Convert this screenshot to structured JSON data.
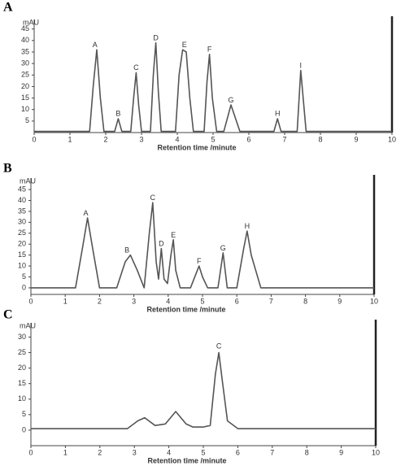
{
  "chart_data": [
    {
      "type": "line",
      "title": "A",
      "y_label": "mAU",
      "x_label": "Retention  time /minute",
      "xlim": [
        0,
        10
      ],
      "xticks": [
        0,
        1,
        2,
        3,
        4,
        5,
        6,
        7,
        8,
        9,
        10
      ],
      "ylim": [
        0,
        47
      ],
      "yticks": [
        5,
        10,
        15,
        20,
        25,
        30,
        35,
        40,
        45
      ],
      "series": [
        {
          "color": "#555555",
          "x": [
            0,
            1.55,
            1.65,
            1.75,
            1.85,
            1.95,
            2.25,
            2.35,
            2.45,
            2.7,
            2.78,
            2.85,
            2.92,
            3.0,
            3.25,
            3.33,
            3.4,
            3.47,
            3.55,
            3.95,
            4.05,
            4.15,
            4.25,
            4.35,
            4.45,
            4.75,
            4.83,
            4.9,
            4.98,
            5.1,
            5.3,
            5.5,
            5.75,
            6.7,
            6.8,
            6.9,
            7.35,
            7.45,
            7.6,
            10
          ],
          "values": [
            0.5,
            0.5,
            20,
            36,
            15,
            0.5,
            0.5,
            6,
            0.5,
            0.5,
            15,
            26,
            12,
            0.5,
            0.5,
            25,
            39,
            18,
            0.5,
            0.5,
            25,
            36,
            35,
            15,
            0.5,
            0.5,
            22,
            34,
            15,
            0.5,
            0.5,
            12,
            0.5,
            0.5,
            6,
            0.5,
            0.5,
            27,
            0.5,
            0.5
          ]
        }
      ],
      "annotations": [
        {
          "text": "A",
          "x": 1.7,
          "y": 38
        },
        {
          "text": "B",
          "x": 2.35,
          "y": 8
        },
        {
          "text": "C",
          "x": 2.85,
          "y": 28
        },
        {
          "text": "D",
          "x": 3.4,
          "y": 41
        },
        {
          "text": "E",
          "x": 4.2,
          "y": 38
        },
        {
          "text": "F",
          "x": 4.9,
          "y": 36
        },
        {
          "text": "G",
          "x": 5.5,
          "y": 14
        },
        {
          "text": "H",
          "x": 6.8,
          "y": 8
        },
        {
          "text": "I",
          "x": 7.45,
          "y": 29
        }
      ]
    },
    {
      "type": "line",
      "title": "B",
      "y_label": "mAU",
      "x_label": "Retention  time /minute",
      "xlim": [
        0,
        10
      ],
      "xticks": [
        0,
        1,
        2,
        3,
        4,
        5,
        6,
        7,
        8,
        9,
        10
      ],
      "ylim": [
        -3,
        48
      ],
      "yticks": [
        0,
        5,
        10,
        15,
        20,
        25,
        30,
        35,
        40,
        45
      ],
      "series": [
        {
          "color": "#555555",
          "x": [
            0,
            1.3,
            1.5,
            1.65,
            1.8,
            2.0,
            2.5,
            2.75,
            2.9,
            3.1,
            3.3,
            3.45,
            3.55,
            3.65,
            3.72,
            3.8,
            3.88,
            3.98,
            4.08,
            4.15,
            4.22,
            4.35,
            4.65,
            4.8,
            4.9,
            5.0,
            5.15,
            5.45,
            5.6,
            5.72,
            6.0,
            6.2,
            6.3,
            6.42,
            6.7,
            10
          ],
          "values": [
            0,
            0,
            18,
            32,
            18,
            0,
            0,
            12,
            15,
            8,
            0,
            25,
            39,
            12,
            4,
            18,
            4,
            2,
            15,
            22,
            8,
            0,
            0,
            6,
            10,
            5,
            0,
            0,
            16,
            0,
            0,
            18,
            26,
            15,
            0,
            0
          ]
        }
      ],
      "annotations": [
        {
          "text": "A",
          "x": 1.6,
          "y": 34
        },
        {
          "text": "B",
          "x": 2.8,
          "y": 17
        },
        {
          "text": "C",
          "x": 3.55,
          "y": 41
        },
        {
          "text": "D",
          "x": 3.8,
          "y": 20
        },
        {
          "text": "E",
          "x": 4.15,
          "y": 24
        },
        {
          "text": "F",
          "x": 4.9,
          "y": 12
        },
        {
          "text": "G",
          "x": 5.6,
          "y": 18
        },
        {
          "text": "H",
          "x": 6.3,
          "y": 28
        }
      ]
    },
    {
      "type": "line",
      "title": "C",
      "y_label": "mAU",
      "x_label": "Retention  time /minute",
      "xlim": [
        0,
        10
      ],
      "xticks": [
        0,
        1,
        2,
        3,
        4,
        5,
        6,
        7,
        8,
        9,
        10
      ],
      "ylim": [
        -5,
        33
      ],
      "yticks": [
        0,
        5,
        10,
        15,
        20,
        25,
        30
      ],
      "series": [
        {
          "color": "#555555",
          "x": [
            0,
            2.8,
            3.1,
            3.3,
            3.6,
            3.9,
            4.2,
            4.5,
            4.7,
            5.0,
            5.2,
            5.35,
            5.45,
            5.55,
            5.7,
            6.0,
            10
          ],
          "values": [
            0.5,
            0.5,
            3,
            4,
            1.5,
            2,
            6,
            2,
            1,
            1,
            1.5,
            18,
            25,
            16,
            3,
            0.5,
            0.5
          ]
        }
      ],
      "annotations": [
        {
          "text": "C",
          "x": 5.45,
          "y": 27
        }
      ]
    }
  ]
}
